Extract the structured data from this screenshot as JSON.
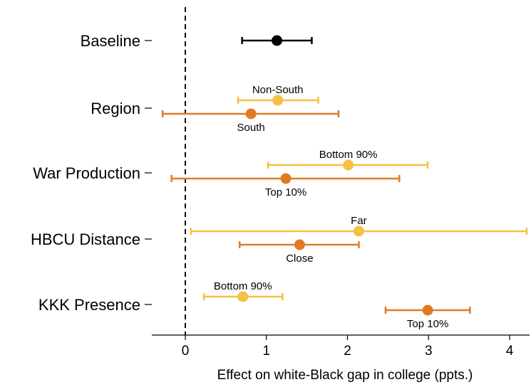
{
  "colors": {
    "baseline": "#000000",
    "light": "#F5C043",
    "dark": "#E07B25",
    "zero_line": "#000000"
  },
  "chart_data": {
    "type": "scatter",
    "subtype": "coefficient-plot",
    "orientation": "horizontal",
    "title": "",
    "xlabel": "Effect on white-Black gap in college (ppts.)",
    "ylabel": "",
    "xlim": [
      -0.42,
      4.25
    ],
    "xticks": [
      0,
      1,
      2,
      3,
      4
    ],
    "reference_line": {
      "x": 0,
      "style": "dashed"
    },
    "grid": false,
    "legend": "none",
    "categories": [
      "Baseline",
      "Region",
      "War Production",
      "HBCU Distance",
      "KKK Presence"
    ],
    "series": [
      {
        "category": "Baseline",
        "points": [
          {
            "label": "",
            "estimate": 1.13,
            "low": 0.7,
            "high": 1.56,
            "color": "baseline",
            "slot": "center",
            "label_pos": "none"
          }
        ]
      },
      {
        "category": "Region",
        "points": [
          {
            "label": "Non-South",
            "estimate": 1.14,
            "low": 0.65,
            "high": 1.64,
            "color": "light",
            "slot": "upper",
            "label_pos": "above"
          },
          {
            "label": "South",
            "estimate": 0.81,
            "low": -0.28,
            "high": 1.89,
            "color": "dark",
            "slot": "lower",
            "label_pos": "below"
          }
        ]
      },
      {
        "category": "War Production",
        "points": [
          {
            "label": "Bottom 90%",
            "estimate": 2.01,
            "low": 1.02,
            "high": 2.99,
            "color": "light",
            "slot": "upper",
            "label_pos": "above"
          },
          {
            "label": "Top 10%",
            "estimate": 1.24,
            "low": -0.17,
            "high": 2.64,
            "color": "dark",
            "slot": "lower",
            "label_pos": "below"
          }
        ]
      },
      {
        "category": "HBCU Distance",
        "points": [
          {
            "label": "Far",
            "estimate": 2.14,
            "low": 0.07,
            "high": 4.21,
            "color": "light",
            "slot": "upper",
            "label_pos": "above"
          },
          {
            "label": "Close",
            "estimate": 1.41,
            "low": 0.67,
            "high": 2.14,
            "color": "dark",
            "slot": "lower",
            "label_pos": "below"
          }
        ]
      },
      {
        "category": "KKK Presence",
        "points": [
          {
            "label": "Bottom 90%",
            "estimate": 0.71,
            "low": 0.23,
            "high": 1.2,
            "color": "light",
            "slot": "upper",
            "label_pos": "above"
          },
          {
            "label": "Top 10%",
            "estimate": 2.99,
            "low": 2.47,
            "high": 3.51,
            "color": "dark",
            "slot": "lower",
            "label_pos": "below"
          }
        ]
      }
    ]
  }
}
